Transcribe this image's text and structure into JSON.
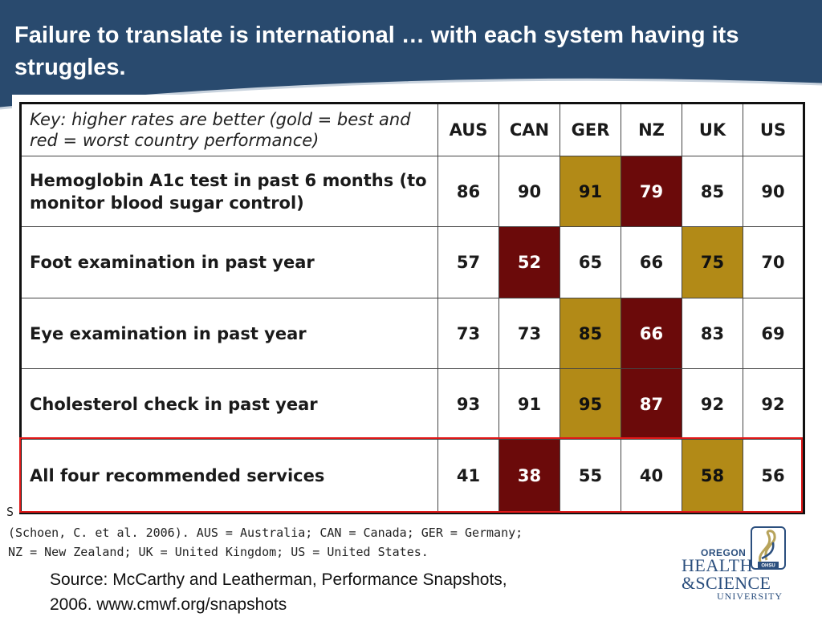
{
  "slide": {
    "title": "Failure to translate is international … with each system having its struggles."
  },
  "table": {
    "key": "Key: higher rates are better (gold = best and red = worst country performance)",
    "countries": [
      "AUS",
      "CAN",
      "GER",
      "NZ",
      "UK",
      "US"
    ],
    "rows": [
      {
        "label": "Hemoglobin A1c test in past 6 months (to monitor blood sugar control)",
        "values": [
          "86",
          "90",
          "91",
          "79",
          "85",
          "90"
        ],
        "gold": 2,
        "red": 3
      },
      {
        "label": "Foot examination in past year",
        "values": [
          "57",
          "52",
          "65",
          "66",
          "75",
          "70"
        ],
        "gold": 4,
        "red": 1
      },
      {
        "label": "Eye examination in past year",
        "values": [
          "73",
          "73",
          "85",
          "66",
          "83",
          "69"
        ],
        "gold": 2,
        "red": 3
      },
      {
        "label": "Cholesterol check in past year",
        "values": [
          "93",
          "91",
          "95",
          "87",
          "92",
          "92"
        ],
        "gold": 2,
        "red": 3
      },
      {
        "label": "All four recommended services",
        "values": [
          "41",
          "38",
          "55",
          "40",
          "58",
          "56"
        ],
        "gold": 4,
        "red": 1
      }
    ],
    "gold_color": "#b28a17",
    "red_color": "#6b0a0a",
    "highlight_color": "#e01818"
  },
  "notes": {
    "clipped_char": "S",
    "line1": "(Schoen, C. et al. 2006). AUS = Australia; CAN = Canada; GER = Germany;",
    "line2": "NZ = New Zealand; UK = United Kingdom; US = United States."
  },
  "source": {
    "line1": "Source: McCarthy and Leatherman, Performance Snapshots,",
    "line2": "2006. www.cmwf.org/snapshots"
  },
  "logo": {
    "line1": "OREGON",
    "line2": "HEALTH",
    "line3": "&SCIENCE",
    "line4": "UNIVERSITY",
    "badge": "OHSU"
  },
  "colors": {
    "header": "#294a6e",
    "logo": "#2b4f7e"
  }
}
